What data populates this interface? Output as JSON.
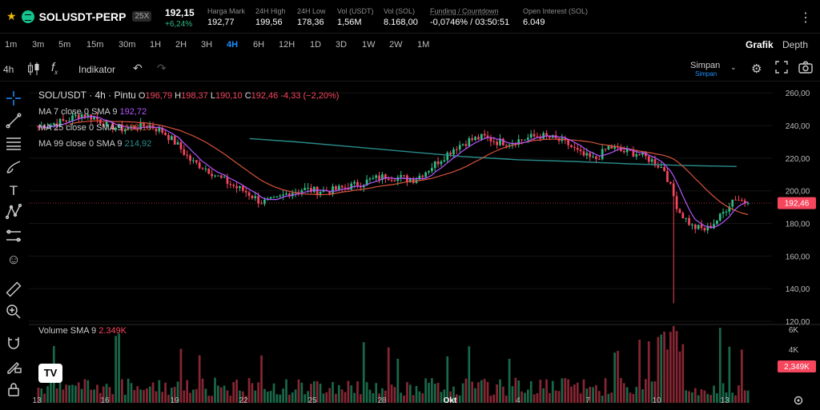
{
  "header": {
    "symbol": "SOLUSDT",
    "contract": "-PERP",
    "leverage": "25X",
    "last_price": "192,15",
    "change": "+6,24%",
    "stats": [
      {
        "label": "Harga Mark",
        "value": "192,77"
      },
      {
        "label": "24H High",
        "value": "199,56"
      },
      {
        "label": "24H Low",
        "value": "178,36"
      },
      {
        "label": "Vol (USDT)",
        "value": "1,56M"
      },
      {
        "label": "Vol (SOL)",
        "value": "8.168,00"
      },
      {
        "label": "Funding / Countdown",
        "value": "-0,0746% / 03:50:51"
      },
      {
        "label": "Open Interest (SOL)",
        "value": "6.049"
      }
    ]
  },
  "timeframes": [
    "1m",
    "3m",
    "5m",
    "15m",
    "30m",
    "1H",
    "2H",
    "3H",
    "4H",
    "6H",
    "12H",
    "1D",
    "3D",
    "1W",
    "2W",
    "1M"
  ],
  "active_timeframe": "4H",
  "view_tabs": [
    "Grafik",
    "Depth"
  ],
  "active_view": "Grafik",
  "toolbar": {
    "interval": "4h",
    "indicator_label": "Indikator",
    "save_label": "Simpan",
    "save_sub": "Simpan"
  },
  "legend": {
    "title": "SOL/USDT · 4h · Pintu",
    "o_label": "O",
    "o": "196,79",
    "h_label": "H",
    "h": "198,37",
    "l_label": "L",
    "l": "190,10",
    "c_label": "C",
    "c": "192,46",
    "change": "-4,33 (−2,20%)",
    "ma7": "MA 7 close 0 SMA 9",
    "ma7_val": "192,72",
    "ma25": "MA 25 close 0 SMA 9",
    "ma25_val": "198,10",
    "ma99": "MA 99 close 0 SMA 9",
    "ma99_val": "214,92",
    "volume": "Volume SMA 9",
    "volume_val": "2.349K"
  },
  "colors": {
    "up": "#2ebd85",
    "down": "#f6465d",
    "ma7": "#b455ff",
    "ma25": "#d7533b",
    "ma99": "#2a8c8c",
    "accent": "#1e90ff"
  },
  "chart_data": {
    "type": "candlestick",
    "y_ticks": [
      120,
      140,
      160,
      180,
      200,
      220,
      240,
      260
    ],
    "ylim": [
      120,
      266
    ],
    "last_price": 192.46,
    "last_price_label": "192,46",
    "x_ticks": [
      "13",
      "16",
      "19",
      "22",
      "25",
      "28",
      "Okt",
      "4",
      "7",
      "10",
      "13"
    ],
    "volume_ticks": [
      "6K",
      "4K"
    ],
    "volume_last_label": "2,349K",
    "close_path": [
      239,
      241,
      243,
      247,
      245,
      240,
      238,
      239,
      240,
      236,
      228,
      218,
      214,
      208,
      203,
      199,
      193,
      194,
      199,
      201,
      200,
      200,
      202,
      204,
      207,
      209,
      208,
      207,
      213,
      220,
      227,
      231,
      233,
      230,
      230,
      232,
      234,
      232,
      229,
      222,
      219,
      227,
      224,
      223,
      219,
      213,
      188,
      178,
      176,
      184,
      196,
      192.46
    ],
    "ma99_path": [
      [
        11.5,
        232
      ],
      [
        14,
        230
      ],
      [
        17,
        227
      ],
      [
        20,
        224
      ],
      [
        23,
        221
      ],
      [
        26,
        219
      ],
      [
        29,
        218
      ],
      [
        32,
        216.5
      ],
      [
        35,
        215.5
      ],
      [
        37.8,
        214.92
      ]
    ]
  }
}
